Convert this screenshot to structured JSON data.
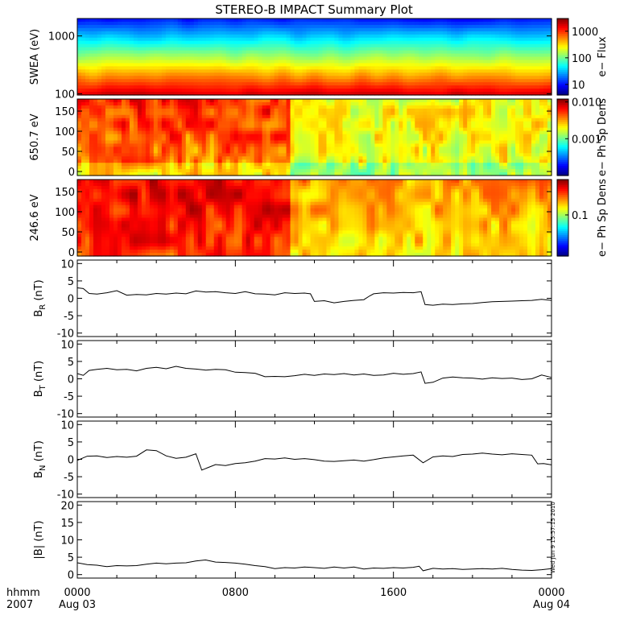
{
  "title": "STEREO-B IMPACT Summary Plot",
  "time_axis": {
    "corner_top": "hhmm",
    "corner_bottom": "2007",
    "ticks": [
      {
        "hours": 0,
        "top": "0000",
        "bottom": "Aug 03"
      },
      {
        "hours": 8,
        "top": "0800",
        "bottom": ""
      },
      {
        "hours": 16,
        "top": "1600",
        "bottom": ""
      },
      {
        "hours": 24,
        "top": "0000",
        "bottom": "Aug 04"
      }
    ],
    "range_hours": [
      0,
      24
    ]
  },
  "timestamp_text": "Wed Jun  9 15:57:15 2010",
  "spectrograms": [
    {
      "ylabel": "SWEA (eV)",
      "scale": "log",
      "yrange": [
        95,
        2000
      ],
      "yticks": [
        {
          "v": 100,
          "t": "100"
        },
        {
          "v": 1000,
          "t": "1000"
        }
      ],
      "colorbar": {
        "label": "e− Flux",
        "scale": "log",
        "range": [
          4,
          3000
        ],
        "ticks": [
          {
            "v": 10,
            "t": "10"
          },
          {
            "v": 100,
            "t": "100"
          },
          {
            "v": 1000,
            "t": "1000"
          }
        ]
      }
    },
    {
      "ylabel": "650.7 eV",
      "scale": "linear",
      "yrange": [
        -10,
        180
      ],
      "yticks": [
        {
          "v": 0,
          "t": "0"
        },
        {
          "v": 50,
          "t": "50"
        },
        {
          "v": 100,
          "t": "100"
        },
        {
          "v": 150,
          "t": "150"
        }
      ],
      "colorbar": {
        "label": "e− Ph Sp Dens",
        "scale": "log",
        "range": [
          0.0001,
          0.012
        ],
        "ticks": [
          {
            "v": 0.001,
            "t": "0.001"
          },
          {
            "v": 0.01,
            "t": "0.010"
          }
        ]
      }
    },
    {
      "ylabel": "246.6 eV",
      "scale": "linear",
      "yrange": [
        -10,
        180
      ],
      "yticks": [
        {
          "v": 0,
          "t": "0"
        },
        {
          "v": 50,
          "t": "50"
        },
        {
          "v": 100,
          "t": "100"
        },
        {
          "v": 150,
          "t": "150"
        }
      ],
      "colorbar": {
        "label": "e− Ph Sp Dens",
        "scale": "log",
        "range": [
          0.02,
          0.4
        ],
        "ticks": [
          {
            "v": 0.1,
            "t": "0.1"
          }
        ]
      }
    }
  ],
  "chart_data": [
    {
      "type": "line",
      "ylabel": "BR (nT)",
      "ylabel_base": "B",
      "ylabel_sub": "R",
      "ylabel_unit": " (nT)",
      "ylim": [
        -11,
        11
      ],
      "yticks": [
        -10,
        -5,
        0,
        5,
        10
      ],
      "x_hours": [
        0,
        0.3,
        0.6,
        1,
        1.5,
        2,
        2.5,
        3,
        3.5,
        4,
        4.5,
        5,
        5.5,
        6,
        6.5,
        7,
        7.5,
        8,
        8.5,
        9,
        9.5,
        10,
        10.5,
        11,
        11.5,
        11.8,
        12,
        12.5,
        13,
        13.5,
        14,
        14.5,
        14.8,
        15,
        15.5,
        16,
        16.5,
        17,
        17.4,
        17.6,
        18,
        18.5,
        19,
        19.5,
        20,
        20.5,
        21,
        21.5,
        22,
        22.5,
        23,
        23.5,
        24
      ],
      "values": [
        3.0,
        2.8,
        1.4,
        1.2,
        1.6,
        2.2,
        0.9,
        1.1,
        1.0,
        1.4,
        1.2,
        1.5,
        1.3,
        2.1,
        1.8,
        1.9,
        1.6,
        1.4,
        1.9,
        1.3,
        1.2,
        1.0,
        1.6,
        1.4,
        1.5,
        1.3,
        -0.9,
        -0.7,
        -1.3,
        -0.9,
        -0.6,
        -0.4,
        0.7,
        1.3,
        1.6,
        1.5,
        1.7,
        1.6,
        1.9,
        -1.8,
        -2.0,
        -1.7,
        -1.8,
        -1.6,
        -1.5,
        -1.2,
        -1.0,
        -0.9,
        -0.8,
        -0.7,
        -0.6,
        -0.3,
        -0.6
      ]
    },
    {
      "type": "line",
      "ylabel": "BT (nT)",
      "ylabel_base": "B",
      "ylabel_sub": "T",
      "ylabel_unit": " (nT)",
      "ylim": [
        -11,
        11
      ],
      "yticks": [
        -10,
        -5,
        0,
        5,
        10
      ],
      "x_hours": [
        0,
        0.3,
        0.6,
        1,
        1.5,
        2,
        2.5,
        3,
        3.5,
        4,
        4.5,
        5,
        5.5,
        6,
        6.5,
        7,
        7.5,
        8,
        8.5,
        9,
        9.5,
        10,
        10.5,
        11,
        11.5,
        12,
        12.5,
        13,
        13.5,
        14,
        14.5,
        15,
        15.5,
        16,
        16.5,
        17,
        17.4,
        17.6,
        18,
        18.5,
        19,
        19.5,
        20,
        20.5,
        21,
        21.5,
        22,
        22.5,
        23,
        23.5,
        24
      ],
      "values": [
        1.5,
        1.0,
        2.4,
        2.7,
        3.0,
        2.6,
        2.7,
        2.3,
        3.0,
        3.3,
        2.9,
        3.6,
        3.0,
        2.8,
        2.5,
        2.7,
        2.6,
        1.9,
        1.8,
        1.6,
        0.6,
        0.7,
        0.6,
        0.9,
        1.3,
        1.0,
        1.4,
        1.2,
        1.5,
        1.1,
        1.4,
        1.0,
        1.1,
        1.6,
        1.3,
        1.5,
        2.0,
        -1.3,
        -1.0,
        0.2,
        0.5,
        0.3,
        0.2,
        -0.1,
        0.3,
        0.1,
        0.2,
        -0.2,
        0.0,
        1.1,
        0.4
      ]
    },
    {
      "type": "line",
      "ylabel": "BN (nT)",
      "ylabel_base": "B",
      "ylabel_sub": "N",
      "ylabel_unit": " (nT)",
      "ylim": [
        -11,
        11
      ],
      "yticks": [
        -10,
        -5,
        0,
        5,
        10
      ],
      "x_hours": [
        0,
        0.5,
        1,
        1.5,
        2,
        2.5,
        3,
        3.5,
        4,
        4.5,
        5,
        5.5,
        6,
        6.3,
        6.6,
        7,
        7.5,
        8,
        8.5,
        9,
        9.5,
        10,
        10.5,
        11,
        11.5,
        12,
        12.5,
        13,
        13.5,
        14,
        14.5,
        15,
        15.5,
        16,
        16.5,
        17,
        17.5,
        18,
        18.5,
        19,
        19.5,
        20,
        20.5,
        21,
        21.5,
        22,
        22.5,
        23,
        23.3,
        23.6,
        24
      ],
      "values": [
        -0.3,
        0.9,
        1.0,
        0.5,
        0.8,
        0.6,
        0.9,
        2.7,
        2.5,
        1.0,
        0.3,
        0.6,
        1.6,
        -3.1,
        -2.4,
        -1.5,
        -1.8,
        -1.2,
        -1.0,
        -0.5,
        0.2,
        0.1,
        0.4,
        0.0,
        0.2,
        -0.1,
        -0.5,
        -0.6,
        -0.4,
        -0.2,
        -0.5,
        -0.1,
        0.4,
        0.7,
        1.0,
        1.2,
        -1.0,
        0.7,
        1.0,
        0.8,
        1.4,
        1.5,
        1.8,
        1.5,
        1.3,
        1.6,
        1.4,
        1.2,
        -1.3,
        -1.2,
        -1.6
      ]
    },
    {
      "type": "line",
      "ylabel": "|B| (nT)",
      "ylabel_base": "|B|",
      "ylabel_sub": "",
      "ylabel_unit": " (nT)",
      "ylim": [
        -1,
        21
      ],
      "yticks": [
        0,
        5,
        10,
        15,
        20
      ],
      "x_hours": [
        0,
        0.5,
        1,
        1.5,
        2,
        2.5,
        3,
        3.5,
        4,
        4.5,
        5,
        5.5,
        6,
        6.5,
        7,
        7.5,
        8,
        8.5,
        9,
        9.5,
        10,
        10.5,
        11,
        11.5,
        12,
        12.5,
        13,
        13.5,
        14,
        14.5,
        15,
        15.5,
        16,
        16.5,
        17,
        17.3,
        17.5,
        18,
        18.5,
        19,
        19.5,
        20,
        20.5,
        21,
        21.5,
        22,
        22.5,
        23,
        23.5,
        24
      ],
      "values": [
        3.4,
        2.9,
        2.7,
        2.3,
        2.6,
        2.5,
        2.6,
        3.0,
        3.3,
        3.1,
        3.3,
        3.4,
        3.9,
        4.2,
        3.6,
        3.5,
        3.3,
        3.0,
        2.6,
        2.3,
        1.7,
        2.0,
        1.9,
        2.2,
        2.0,
        1.8,
        2.2,
        1.9,
        2.2,
        1.6,
        1.9,
        1.8,
        2.0,
        1.9,
        2.1,
        2.4,
        1.1,
        1.8,
        1.6,
        1.7,
        1.5,
        1.6,
        1.7,
        1.6,
        1.8,
        1.5,
        1.3,
        1.2,
        1.4,
        1.7
      ]
    }
  ]
}
